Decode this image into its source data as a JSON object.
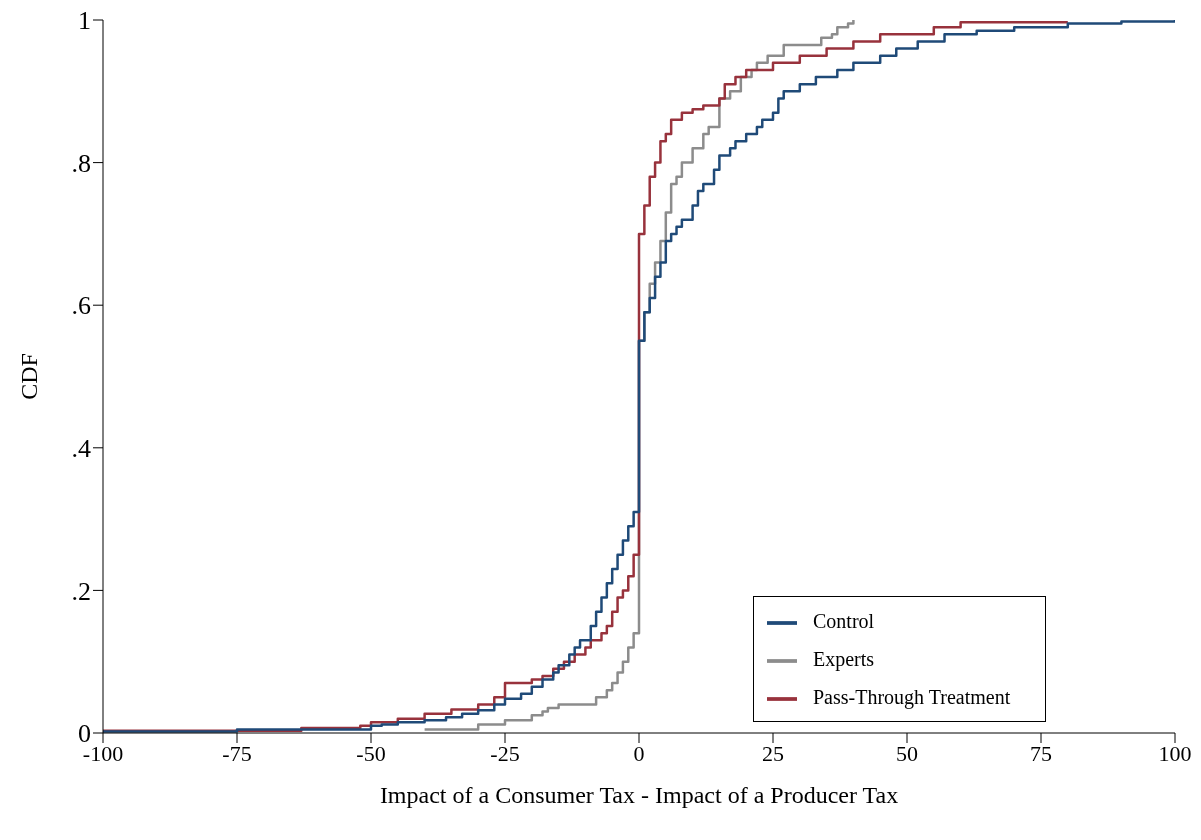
{
  "chart_data": {
    "type": "step",
    "xlabel": "Impact of a Consumer Tax - Impact of a Producer Tax",
    "ylabel": "CDF",
    "xlim": [
      -100,
      100
    ],
    "xticks": [
      -100,
      -75,
      -50,
      -25,
      0,
      25,
      50,
      75,
      100
    ],
    "ylim": [
      0,
      1
    ],
    "yticks": [
      0,
      {
        "value": 0.2,
        "label": ".2"
      },
      {
        "value": 0.4,
        "label": ".4"
      },
      {
        "value": 0.6,
        "label": ".6"
      },
      {
        "value": 0.8,
        "label": ".8"
      },
      1
    ],
    "grid": false,
    "legend": "bottom right",
    "line_style": "solid",
    "marker": "none",
    "series": [
      {
        "name": "Experts",
        "color": "#8c8c8c",
        "x": [
          -40,
          -30,
          -25,
          -20,
          -18,
          -17,
          -15,
          -10,
          -8,
          -6,
          -5,
          -4,
          -3,
          -2,
          -1,
          0,
          0,
          1,
          2,
          3,
          4,
          5,
          6,
          7,
          8,
          10,
          12,
          13,
          15,
          17,
          19,
          21,
          22,
          24,
          27,
          34,
          36,
          37,
          39,
          40
        ],
        "values": [
          0.005,
          0.012,
          0.018,
          0.025,
          0.03,
          0.035,
          0.04,
          0.04,
          0.05,
          0.06,
          0.07,
          0.085,
          0.1,
          0.12,
          0.14,
          0.14,
          0.55,
          0.59,
          0.63,
          0.66,
          0.69,
          0.73,
          0.77,
          0.78,
          0.8,
          0.82,
          0.84,
          0.85,
          0.89,
          0.9,
          0.92,
          0.93,
          0.94,
          0.95,
          0.965,
          0.975,
          0.98,
          0.99,
          0.995,
          1
        ]
      },
      {
        "name": "Pass-Through Treatment",
        "color": "#98323c",
        "x": [
          -100,
          -63,
          -52,
          -50,
          -45,
          -40,
          -35,
          -30,
          -27,
          -25,
          -20,
          -18,
          -16,
          -14,
          -12,
          -10,
          -9,
          -7,
          -6,
          -5,
          -4,
          -3,
          -2,
          -1,
          0,
          0,
          1,
          2,
          3,
          4,
          5,
          6,
          8,
          10,
          12,
          15,
          16,
          18,
          20,
          25,
          30,
          35,
          40,
          45,
          55,
          60,
          80
        ],
        "values": [
          0.003,
          0.007,
          0.01,
          0.015,
          0.02,
          0.027,
          0.033,
          0.04,
          0.05,
          0.07,
          0.075,
          0.08,
          0.09,
          0.1,
          0.11,
          0.12,
          0.13,
          0.14,
          0.15,
          0.17,
          0.19,
          0.2,
          0.22,
          0.25,
          0.26,
          0.7,
          0.74,
          0.78,
          0.8,
          0.83,
          0.84,
          0.86,
          0.87,
          0.875,
          0.88,
          0.89,
          0.91,
          0.92,
          0.93,
          0.94,
          0.95,
          0.96,
          0.97,
          0.98,
          0.99,
          0.997,
          0.997
        ]
      },
      {
        "name": "Control",
        "color": "#1f4a78",
        "x": [
          -100,
          -75,
          -50,
          -48,
          -45,
          -40,
          -36,
          -33,
          -30,
          -27,
          -25,
          -22,
          -20,
          -18,
          -16,
          -15,
          -13,
          -12,
          -11,
          -9,
          -8,
          -7,
          -6,
          -5,
          -4,
          -3,
          -2,
          -1,
          0,
          0,
          1,
          2,
          3,
          4,
          5,
          6,
          7,
          8,
          10,
          11,
          12,
          14,
          15,
          17,
          18,
          20,
          22,
          23,
          25,
          26,
          27,
          30,
          33,
          37,
          40,
          45,
          48,
          52,
          57,
          63,
          70,
          80,
          90,
          100
        ],
        "values": [
          0.002,
          0.005,
          0.01,
          0.012,
          0.015,
          0.018,
          0.022,
          0.027,
          0.032,
          0.04,
          0.048,
          0.055,
          0.065,
          0.075,
          0.085,
          0.095,
          0.11,
          0.12,
          0.13,
          0.15,
          0.17,
          0.19,
          0.21,
          0.23,
          0.25,
          0.27,
          0.29,
          0.31,
          0.33,
          0.55,
          0.59,
          0.61,
          0.64,
          0.66,
          0.69,
          0.7,
          0.71,
          0.72,
          0.74,
          0.76,
          0.77,
          0.79,
          0.81,
          0.82,
          0.83,
          0.84,
          0.85,
          0.86,
          0.87,
          0.89,
          0.9,
          0.91,
          0.92,
          0.93,
          0.94,
          0.95,
          0.96,
          0.97,
          0.98,
          0.985,
          0.99,
          0.995,
          0.998,
          1
        ]
      }
    ]
  }
}
